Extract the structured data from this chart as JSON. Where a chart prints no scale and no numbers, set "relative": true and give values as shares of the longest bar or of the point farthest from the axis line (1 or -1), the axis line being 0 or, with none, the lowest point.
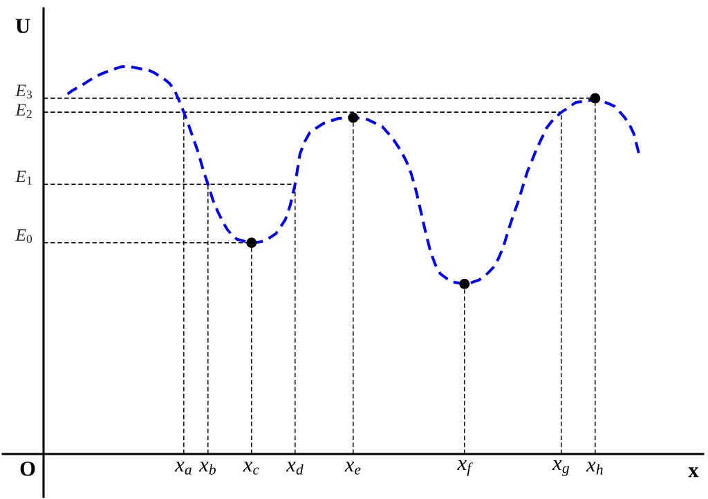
{
  "chart_data": {
    "type": "line",
    "xlabel": "x",
    "ylabel": "U",
    "annotations": [
      "O"
    ],
    "relative": true,
    "grid": "x",
    "categories": [
      null,
      null,
      null,
      null,
      null,
      null,
      null,
      null,
      null,
      null,
      null,
      null,
      null,
      null,
      null,
      null,
      null,
      null,
      null,
      null,
      null,
      null,
      null,
      null,
      "x$_{a}$",
      null,
      null,
      null,
      null,
      "x$_{b}$",
      null,
      null,
      null,
      null,
      null,
      null,
      null,
      null,
      "x$_{c}$",
      null,
      null,
      null,
      null,
      null,
      null,
      null,
      null,
      "x$_{d}$",
      null,
      null,
      null,
      null,
      null,
      null,
      null,
      null,
      null,
      null,
      null,
      "x$_{e}$",
      null,
      null,
      null,
      null,
      null,
      null,
      null,
      null,
      null,
      null,
      null,
      null,
      null,
      null,
      null,
      null,
      null,
      null,
      null,
      null,
      null,
      null,
      "x$_{f}$",
      null,
      null,
      null,
      null,
      null,
      null,
      null,
      null,
      null,
      null,
      null,
      null,
      null,
      null,
      null,
      null,
      null,
      null,
      null,
      "x$_{g}$",
      null,
      null,
      null,
      null,
      null,
      null,
      "x$_{h}$",
      null,
      null,
      null,
      null,
      null,
      null,
      null,
      null,
      null
    ],
    "series": [
      {
        "color": "#0000ff",
        "line_style": "dashed",
        "marker": "none",
        "values": [
          0.929,
          0.938,
          0.945,
          0.952,
          0.96,
          0.968,
          0.975,
          0.981,
          0.986,
          0.99,
          0.995,
          0.999,
          1.0,
          0.999,
          0.997,
          0.994,
          0.992,
          0.989,
          0.983,
          0.975,
          0.967,
          0.957,
          0.941,
          0.913,
          0.882,
          0.849,
          0.813,
          0.778,
          0.733,
          0.696,
          0.656,
          0.626,
          0.601,
          0.579,
          0.565,
          0.554,
          0.551,
          0.547,
          0.545,
          0.546,
          0.548,
          0.552,
          0.56,
          0.568,
          0.586,
          0.605,
          0.642,
          0.696,
          0.774,
          0.806,
          0.829,
          0.838,
          0.846,
          0.854,
          0.858,
          0.862,
          0.866,
          0.867,
          0.868,
          0.868,
          0.867,
          0.865,
          0.863,
          0.857,
          0.851,
          0.845,
          0.831,
          0.817,
          0.799,
          0.779,
          0.755,
          0.723,
          0.679,
          0.625,
          0.57,
          0.521,
          0.488,
          0.465,
          0.456,
          0.447,
          0.443,
          0.441,
          0.439,
          0.44,
          0.445,
          0.449,
          0.457,
          0.469,
          0.482,
          0.504,
          0.533,
          0.575,
          0.613,
          0.648,
          0.688,
          0.729,
          0.759,
          0.79,
          0.816,
          0.842,
          0.858,
          0.87,
          0.882,
          0.89,
          0.899,
          0.907,
          0.909,
          0.911,
          0.913,
          0.918,
          0.913,
          0.908,
          0.903,
          0.897,
          0.884,
          0.87,
          0.852,
          0.826,
          0.777
        ]
      },
      {
        "type": "scatter",
        "color": "#000000",
        "marker": "circle",
        "values": [
          null,
          null,
          null,
          null,
          null,
          null,
          null,
          null,
          null,
          null,
          null,
          null,
          null,
          null,
          null,
          null,
          null,
          null,
          null,
          null,
          null,
          null,
          null,
          null,
          null,
          null,
          null,
          null,
          null,
          null,
          null,
          null,
          null,
          null,
          null,
          null,
          null,
          null,
          0.545,
          null,
          null,
          null,
          null,
          null,
          null,
          null,
          null,
          null,
          null,
          null,
          null,
          null,
          null,
          null,
          null,
          null,
          null,
          null,
          null,
          0.868,
          null,
          null,
          null,
          null,
          null,
          null,
          null,
          null,
          null,
          null,
          null,
          null,
          null,
          null,
          null,
          null,
          null,
          null,
          null,
          null,
          null,
          null,
          0.439,
          null,
          null,
          null,
          null,
          null,
          null,
          null,
          null,
          null,
          null,
          null,
          null,
          null,
          null,
          null,
          null,
          null,
          null,
          null,
          null,
          null,
          null,
          null,
          null,
          null,
          null,
          0.918,
          null,
          null,
          null,
          null,
          null,
          null,
          null,
          null,
          null
        ]
      }
    ],
    "ref_lines": [
      {
        "axis": "y",
        "value": 0.918,
        "label": "E$_{3}$",
        "color": "#000000",
        "line_style": "dashed"
      },
      {
        "axis": "y",
        "value": 0.882,
        "label": "E$_{2}$",
        "color": "#000000",
        "line_style": "dashed"
      },
      {
        "axis": "y",
        "value": 0.696,
        "label": "E$_{1}$",
        "color": "#000000",
        "line_style": "dashed"
      },
      {
        "axis": "y",
        "value": 0.545,
        "label": "E$_{0}$",
        "color": "#000000",
        "line_style": "dashed"
      }
    ]
  }
}
